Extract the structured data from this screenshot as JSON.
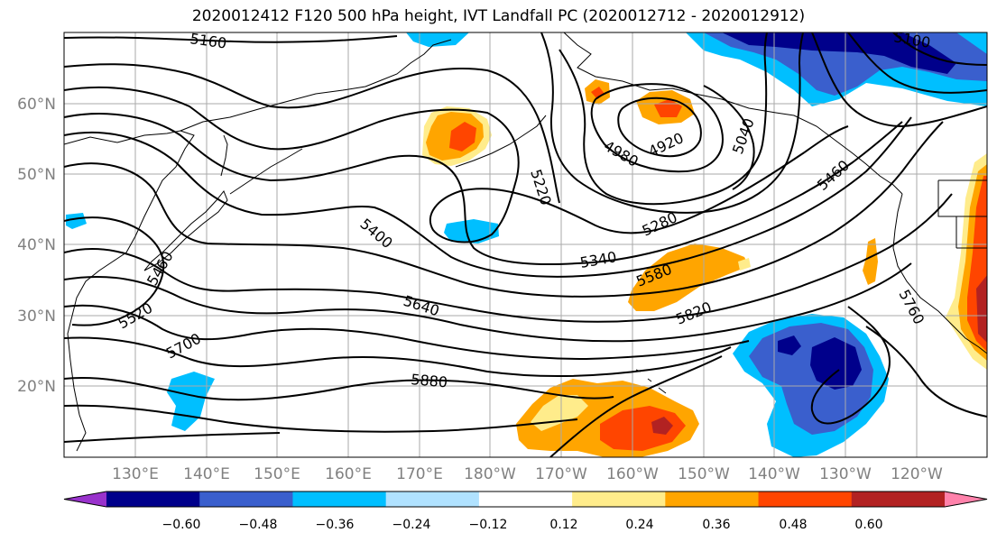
{
  "title": "2020012412 F120 500 hPa height, IVT Landfall PC (2020012712 - 2020012912)",
  "map": {
    "lat_ticks": [
      "60°N",
      "50°N",
      "40°N",
      "30°N",
      "20°N"
    ],
    "lon_ticks": [
      "130°E",
      "140°E",
      "150°E",
      "160°E",
      "170°E",
      "180°W",
      "170°W",
      "160°W",
      "150°W",
      "140°W",
      "130°W",
      "120°W"
    ],
    "contour_labels": [
      "5160",
      "5100",
      "5220",
      "5040",
      "4920",
      "4980",
      "5460",
      "5280",
      "5400",
      "5340",
      "5580",
      "5460",
      "5520",
      "5640",
      "5820",
      "5700",
      "5760",
      "5880"
    ]
  },
  "colorbar": {
    "ticks": [
      "−0.60",
      "−0.48",
      "−0.36",
      "−0.24",
      "−0.12",
      "0.12",
      "0.24",
      "0.36",
      "0.48",
      "0.60"
    ],
    "colors": [
      "#9932cc",
      "#00008b",
      "#3a5fcd",
      "#00bfff",
      "#b0e2ff",
      "#ffffff",
      "#ffec8b",
      "#ffa500",
      "#ff4500",
      "#b22222",
      "#ff82ab"
    ]
  }
}
